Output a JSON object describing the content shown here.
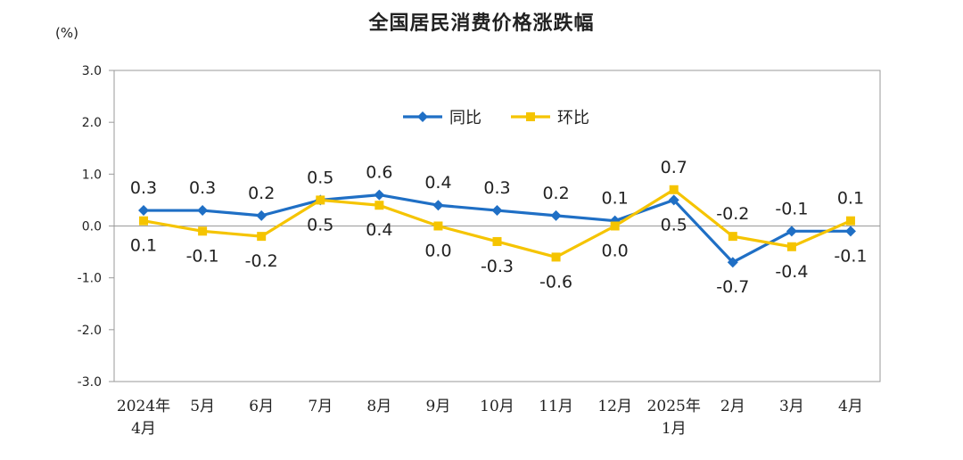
{
  "chart_data": {
    "type": "line",
    "title": "全国居民消费价格涨跌幅",
    "unit": "(%)",
    "ylim": [
      -3.0,
      3.0
    ],
    "yticks": [
      "3.0",
      "2.0",
      "1.0",
      "0.0",
      "-1.0",
      "-2.0",
      "-3.0"
    ],
    "categories": [
      [
        "2024年",
        "4月"
      ],
      [
        "5月"
      ],
      [
        "6月"
      ],
      [
        "7月"
      ],
      [
        "8月"
      ],
      [
        "9月"
      ],
      [
        "10月"
      ],
      [
        "11月"
      ],
      [
        "12月"
      ],
      [
        "2025年",
        "1月"
      ],
      [
        "2月"
      ],
      [
        "3月"
      ],
      [
        "4月"
      ]
    ],
    "legend_position": "top-center",
    "series": [
      {
        "name": "同比",
        "color": "#1f6fc5",
        "marker": "diamond",
        "values": [
          0.3,
          0.3,
          0.2,
          0.5,
          0.6,
          0.4,
          0.3,
          0.2,
          0.1,
          0.5,
          -0.7,
          -0.1,
          -0.1
        ],
        "labels": [
          "0.3",
          "0.3",
          "0.2",
          "0.5",
          "0.6",
          "0.4",
          "0.3",
          "0.2",
          "0.1",
          "0.5",
          "-0.7",
          "-0.1",
          "-0.1"
        ]
      },
      {
        "name": "环比",
        "color": "#f5c400",
        "marker": "square",
        "values": [
          0.1,
          -0.1,
          -0.2,
          0.5,
          0.4,
          0.0,
          -0.3,
          -0.6,
          0.0,
          0.7,
          -0.2,
          -0.4,
          0.1
        ],
        "labels": [
          "0.1",
          "-0.1",
          "-0.2",
          "0.5",
          "0.4",
          "0.0",
          "-0.3",
          "-0.6",
          "0.0",
          "0.7",
          "-0.2",
          "-0.4",
          "0.1"
        ]
      }
    ]
  }
}
